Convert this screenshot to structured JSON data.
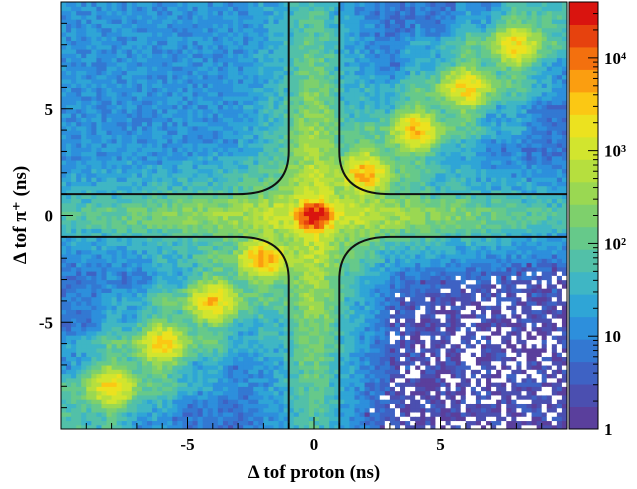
{
  "chart_data": {
    "type": "heatmap",
    "title": "",
    "xlabel": "Δ tof proton (ns)",
    "ylabel": "Δ tof π⁺ (ns)",
    "xlim": [
      -10,
      10
    ],
    "ylim": [
      -10,
      10
    ],
    "x_ticks": [
      -5,
      0,
      5
    ],
    "x_tick_labels": [
      "-5",
      "0",
      "5"
    ],
    "y_ticks": [
      -5,
      0,
      5
    ],
    "y_tick_labels": [
      "-5",
      "0",
      "5"
    ],
    "colorbar": {
      "scale": "log",
      "range": [
        1,
        40000
      ],
      "ticks": [
        1,
        10,
        100,
        1000,
        10000
      ],
      "tick_labels": [
        "1",
        "10",
        "10²",
        "10³",
        "10⁴"
      ],
      "colors": [
        "#5a3f9c",
        "#4b4fb0",
        "#3e62c4",
        "#3378d2",
        "#2d8fdc",
        "#2fa5d6",
        "#3fb6c4",
        "#52c0a8",
        "#66c98a",
        "#7ed06c",
        "#9ad852",
        "#b6df3e",
        "#d2e52e",
        "#ece21f",
        "#fbc814",
        "#fb9e10",
        "#f3700e",
        "#e6420e",
        "#d9140f"
      ]
    },
    "peaks": [
      {
        "x": 0,
        "y": 0,
        "counts": 40000
      },
      {
        "x": 2,
        "y": 2,
        "counts": 4000
      },
      {
        "x": 4,
        "y": 4,
        "counts": 3000
      },
      {
        "x": 6,
        "y": 6,
        "counts": 2500
      },
      {
        "x": 8,
        "y": 8,
        "counts": 2000
      },
      {
        "x": -2,
        "y": -2,
        "counts": 4000
      },
      {
        "x": -4,
        "y": -4,
        "counts": 3000
      },
      {
        "x": -6,
        "y": -6,
        "counts": 2500
      },
      {
        "x": -8,
        "y": -8,
        "counts": 2000
      }
    ],
    "cut_lines": {
      "x_edges": [
        -1,
        1
      ],
      "y_edges": [
        -1,
        1
      ]
    }
  }
}
